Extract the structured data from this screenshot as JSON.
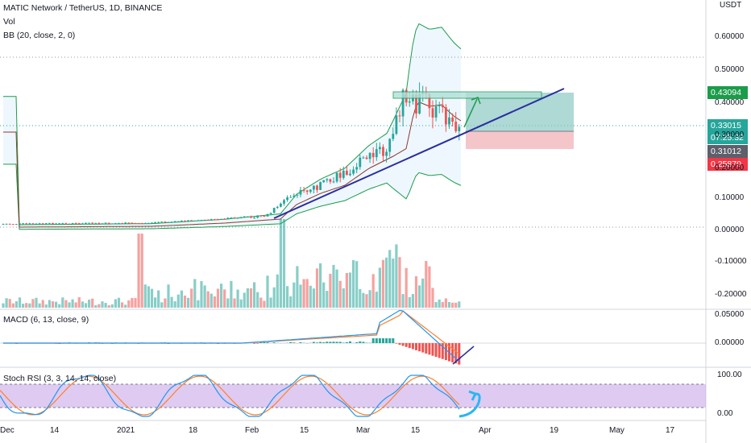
{
  "main_pane": {
    "title": "MATIC Network / TetherUS, 1D, BINANCE",
    "indicator_vol": "Vol",
    "indicator_bb": "BB (20, close, 2, 0)",
    "currency": "USDT",
    "y_ticks": [
      "0.60000",
      "0.50000",
      "0.40000",
      "0.30000",
      "0.20000",
      "0.10000",
      "0.00000",
      "-0.10000",
      "-0.20000"
    ],
    "price_tags": {
      "target": "0.43094",
      "last": "0.33015",
      "countdown": "07:25:32",
      "entry": "0.31012",
      "stop": "0.25870"
    }
  },
  "macd_pane": {
    "title": "MACD (6, 13, close, 9)",
    "y_ticks": [
      "0.05000",
      "0.00000"
    ]
  },
  "stoch_pane": {
    "title": "Stoch RSI (3, 3, 14, 14, close)",
    "y_ticks": [
      "100.00",
      "0.00"
    ]
  },
  "x_axis": {
    "labels": [
      "Dec",
      "14",
      "2021",
      "18",
      "Feb",
      "15",
      "Mar",
      "15",
      "Apr",
      "19",
      "May",
      "17"
    ]
  },
  "colors": {
    "up": "#26a69a",
    "down": "#ef5350",
    "trendline": "#2a2e9e",
    "bb_band": "#1b9c4a",
    "bb_basis": "#8b3a2e",
    "macd_line": "#2196f3",
    "signal_line": "#ff7f27",
    "stoch_fill": "#c9a8e8",
    "target_zone": "#8cc9c3",
    "stop_zone": "#f3b8bc"
  }
}
